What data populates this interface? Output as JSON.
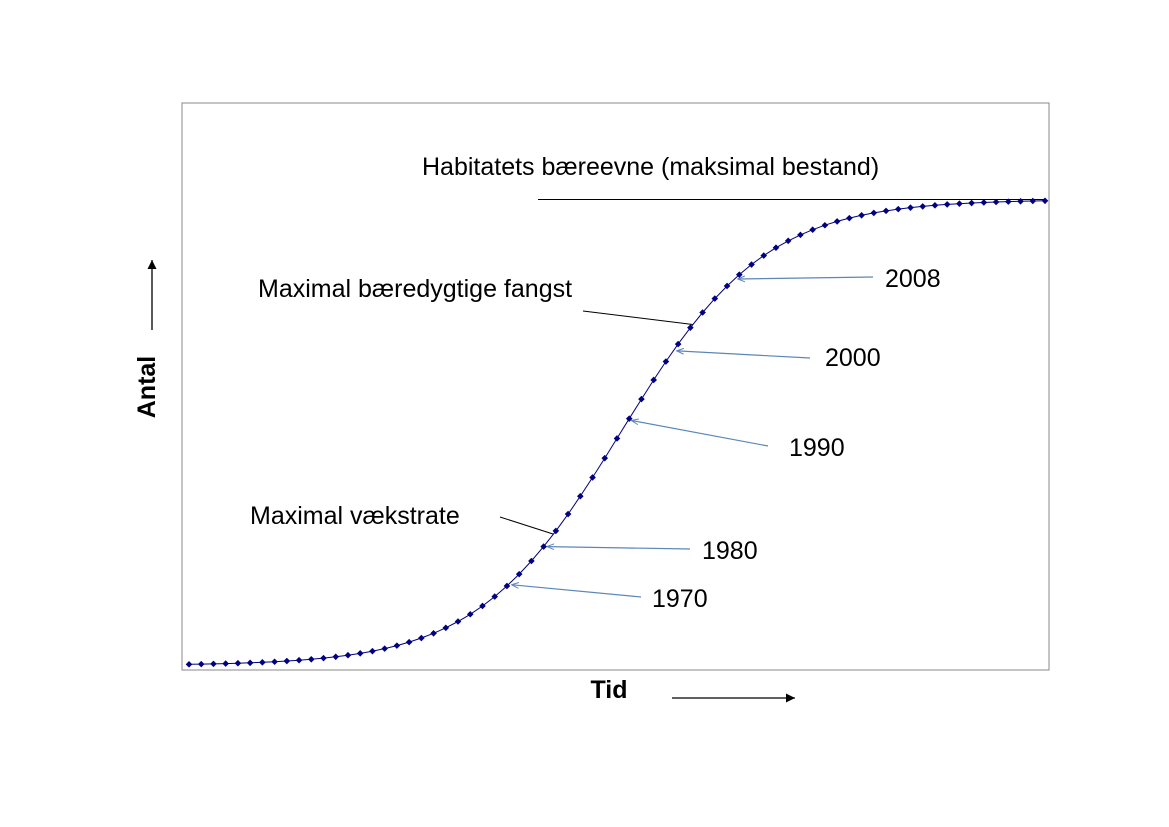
{
  "chart_data": {
    "type": "line",
    "title": "",
    "xlabel": "Tid",
    "ylabel": "Antal",
    "grid": false,
    "legend": "none",
    "series": [
      {
        "curve": "logistic",
        "point_count": 71,
        "x_range": [
          0,
          70
        ],
        "carrying_capacity": 1.0,
        "midpoint_x": 35.3,
        "growth_rate": 0.17,
        "line_color": "#000080",
        "marker_color": "#000080",
        "marker": "diamond"
      }
    ],
    "annotations": {
      "capacity": {
        "label": "Habitatets bæreevne (maksimal bestand)",
        "x": 70,
        "y": 1.0
      },
      "msy": {
        "label": "Maximal bæredygtige fangst",
        "x": 41.2
      },
      "max_growth": {
        "label": "Maximal vækstrate",
        "x": 29.8
      }
    },
    "year_markers": [
      {
        "label": "1970",
        "x": 26.1
      },
      {
        "label": "1980",
        "x": 29.0
      },
      {
        "label": "1990",
        "x": 35.9
      },
      {
        "label": "2000",
        "x": 39.6
      },
      {
        "label": "2008",
        "x": 44.6
      }
    ],
    "colors": {
      "frame": "#888888",
      "series": "#000080",
      "year_arrow": "#5b86b8",
      "annotation_line": "#000000"
    }
  }
}
